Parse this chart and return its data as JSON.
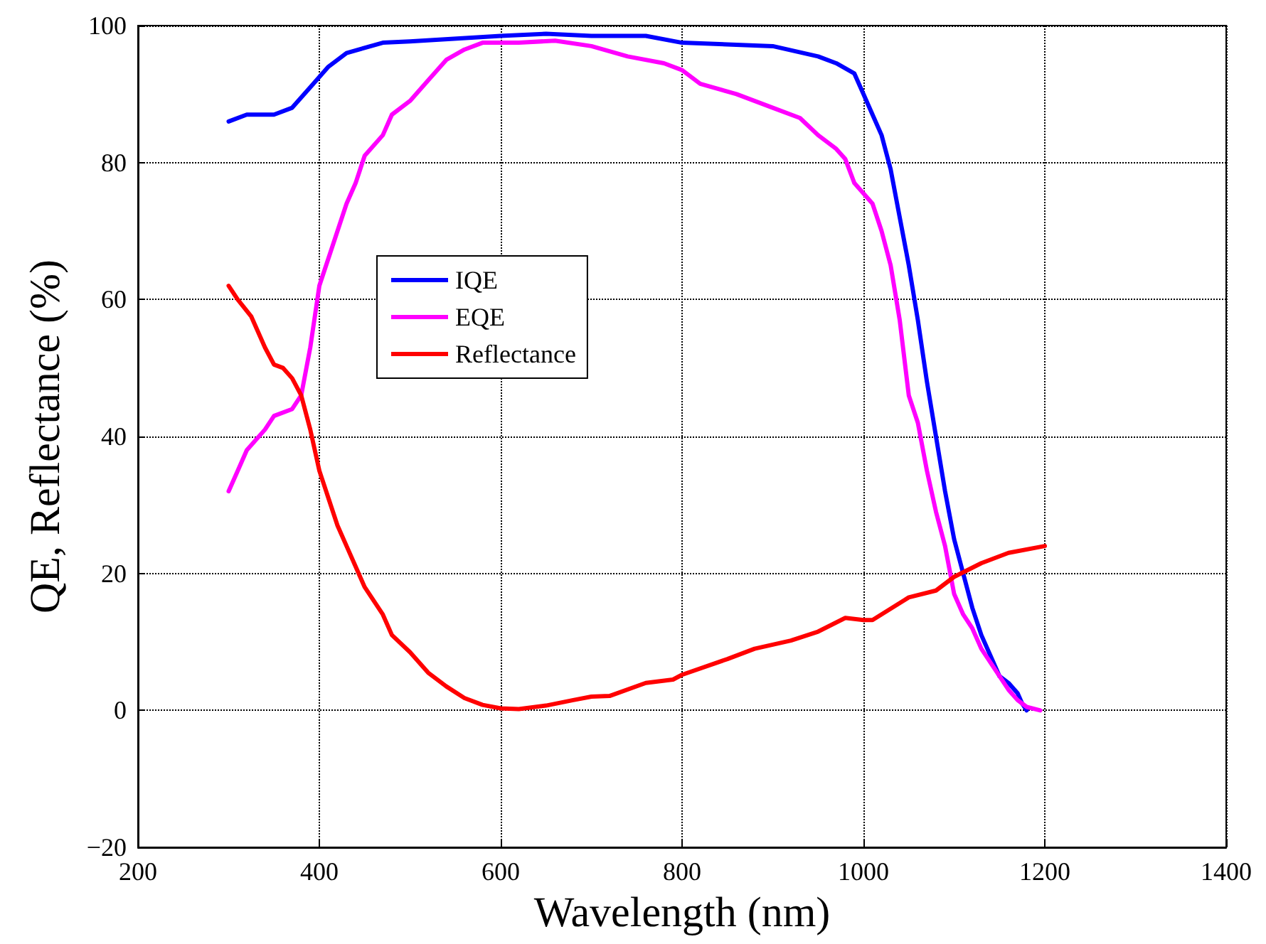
{
  "chart_data": {
    "type": "line",
    "xlabel": "Wavelength (nm)",
    "ylabel": "QE, Reflectance (%)",
    "xlim": [
      200,
      1400
    ],
    "xticks": [
      200,
      400,
      600,
      800,
      1000,
      1200,
      1400
    ],
    "ylim": [
      -20,
      100
    ],
    "yticks": [
      -20,
      0,
      20,
      40,
      60,
      80,
      100
    ],
    "grid": true,
    "legend": "top left",
    "marker": "none",
    "line_style": "solid",
    "series": [
      {
        "name": "IQE",
        "color": "#0000ff",
        "x": [
          300,
          320,
          350,
          370,
          390,
          410,
          430,
          470,
          500,
          600,
          650,
          700,
          760,
          800,
          900,
          950,
          970,
          990,
          1000,
          1010,
          1020,
          1030,
          1040,
          1050,
          1060,
          1070,
          1080,
          1090,
          1100,
          1110,
          1120,
          1130,
          1140,
          1150,
          1160,
          1170,
          1175,
          1180
        ],
        "values": [
          86,
          87,
          87,
          88,
          91,
          94,
          96,
          97.5,
          97.7,
          98.5,
          98.8,
          98.5,
          98.5,
          97.5,
          97,
          95.5,
          94.5,
          93,
          90,
          87,
          84,
          79,
          72,
          65,
          57,
          48,
          40,
          32,
          25,
          20,
          15,
          11,
          8,
          5,
          4,
          2.5,
          1,
          0
        ]
      },
      {
        "name": "EQE",
        "color": "#ff00ff",
        "x": [
          300,
          310,
          320,
          340,
          350,
          370,
          380,
          390,
          400,
          420,
          430,
          440,
          450,
          470,
          480,
          500,
          520,
          540,
          560,
          580,
          620,
          660,
          700,
          740,
          780,
          800,
          820,
          860,
          900,
          930,
          950,
          970,
          980,
          990,
          1010,
          1020,
          1030,
          1040,
          1050,
          1060,
          1070,
          1080,
          1090,
          1100,
          1110,
          1120,
          1130,
          1150,
          1160,
          1170,
          1180,
          1195
        ],
        "values": [
          32,
          35,
          38,
          41,
          43,
          44,
          46,
          53,
          62,
          70,
          74,
          77,
          81,
          84,
          87,
          89,
          92,
          95,
          96.5,
          97.5,
          97.5,
          97.8,
          97,
          95.5,
          94.5,
          93.5,
          91.5,
          90,
          88,
          86.5,
          84,
          82,
          80.5,
          77,
          74,
          70,
          65,
          57,
          46,
          42,
          35,
          29,
          24,
          17,
          14,
          12,
          9,
          5,
          3,
          1.5,
          0.5,
          0
        ]
      },
      {
        "name": "Reflectance",
        "color": "#ff0000",
        "x": [
          300,
          310,
          325,
          340,
          350,
          360,
          370,
          380,
          390,
          400,
          410,
          420,
          430,
          440,
          450,
          460,
          470,
          480,
          500,
          520,
          540,
          560,
          580,
          600,
          620,
          650,
          680,
          700,
          720,
          760,
          790,
          800,
          850,
          880,
          920,
          950,
          980,
          1000,
          1010,
          1050,
          1080,
          1100,
          1130,
          1160,
          1200
        ],
        "values": [
          62,
          60,
          57.5,
          53,
          50.5,
          50,
          48.5,
          46,
          41,
          35,
          31,
          27,
          24,
          21,
          18,
          16,
          14,
          11,
          8.5,
          5.5,
          3.5,
          1.8,
          0.8,
          0.3,
          0.2,
          0.7,
          1.5,
          2,
          2.1,
          4,
          4.5,
          5.2,
          7.5,
          9,
          10.2,
          11.5,
          13.5,
          13.2,
          13.2,
          16.5,
          17.5,
          19.5,
          21.5,
          23,
          24
        ]
      }
    ]
  }
}
